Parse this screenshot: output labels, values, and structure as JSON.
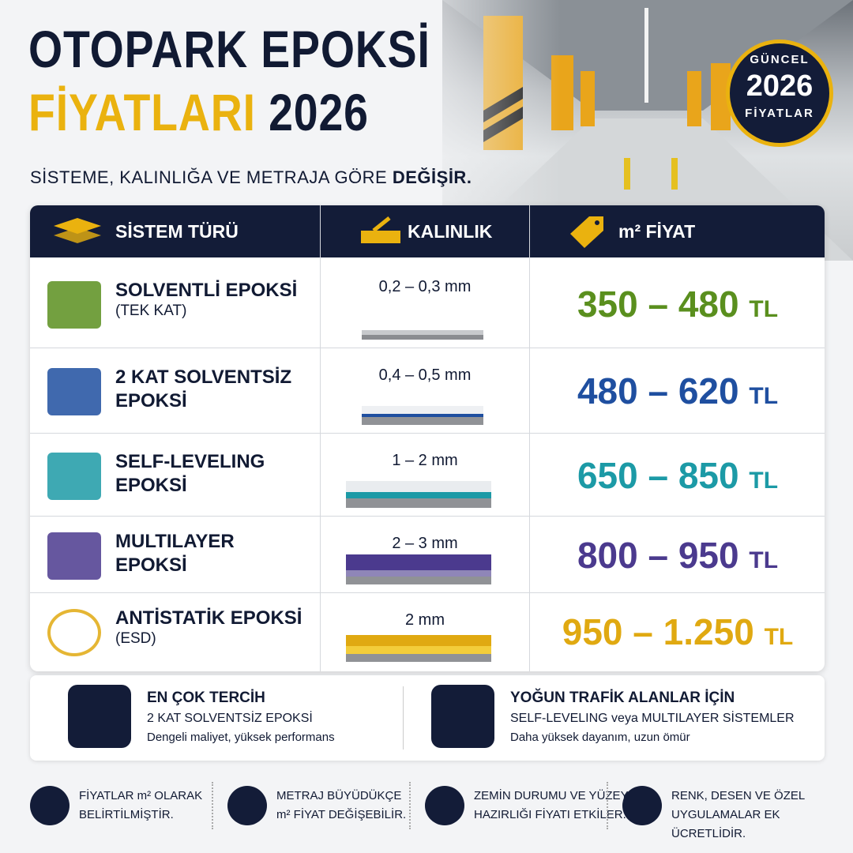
{
  "header": {
    "title_line1": "OTOPARK EPOKSİ",
    "title_line2_a": "FİYATLARI",
    "title_line2_b": "2026",
    "subtitle": "SİSTEME, KALINLIĞA VE METRAJA GÖRE",
    "subtitle_bold": "DEĞİŞİR.",
    "badge": {
      "top": "GÜNCEL",
      "year": "2026",
      "bottom": "FİYATLAR"
    }
  },
  "table": {
    "headers": [
      "SİSTEM TÜRÜ",
      "KALINLIK",
      "m² FİYAT"
    ],
    "rows": [
      {
        "name_lines": [
          "SOLVENTLİ EPOKSİ"
        ],
        "note": "(TEK KAT)",
        "thickness": "0,2 – 0,3 mm",
        "price": "350 – 480",
        "currency": "TL",
        "color": "#5a8f1e"
      },
      {
        "name_lines": [
          "2 KAT SOLVENTSİZ",
          "EPOKSİ"
        ],
        "thickness": "0,4 – 0,5 mm",
        "price": "480 – 620",
        "currency": "TL",
        "color": "#1f4fa0"
      },
      {
        "name_lines": [
          "SELF-LEVELING",
          "EPOKSİ"
        ],
        "thickness": "1 – 2 mm",
        "price": "650 – 850",
        "currency": "TL",
        "color": "#1c9aa6"
      },
      {
        "name_lines": [
          "MULTILAYER",
          "EPOKSİ"
        ],
        "thickness": "2 – 3 mm",
        "price": "800 – 950",
        "currency": "TL",
        "color": "#4b3a8e"
      },
      {
        "name_lines": [
          "ANTİSTATİK EPOKSİ"
        ],
        "note": "(ESD)",
        "thickness": "2 mm",
        "price": "950 – 1.250",
        "currency": "TL",
        "color": "#e0a911"
      }
    ]
  },
  "highlights": [
    {
      "title": "EN ÇOK TERCİH",
      "line1": "2 KAT SOLVENTSİZ EPOKSİ",
      "line2": "Dengeli maliyet, yüksek performans"
    },
    {
      "title": "YOĞUN TRAFİK ALANLAR İÇİN",
      "line1": "SELF-LEVELING veya MULTILAYER SİSTEMLER",
      "line2": "Daha yüksek dayanım, uzun ömür"
    }
  ],
  "notes": [
    {
      "lines": [
        "FİYATLAR m² OLARAK",
        "BELİRTİLMİŞTİR."
      ]
    },
    {
      "lines": [
        "METRAJ BÜYÜDÜKÇE",
        "m² FİYAT DEĞİŞEBİLİR."
      ]
    },
    {
      "lines": [
        "ZEMİN DURUMU VE YÜZEY",
        "HAZIRLIĞI FİYATI ETKİLER."
      ]
    },
    {
      "lines": [
        "RENK, DESEN VE ÖZEL",
        "UYGULAMALAR EK ÜCRETLİDİR."
      ]
    }
  ]
}
